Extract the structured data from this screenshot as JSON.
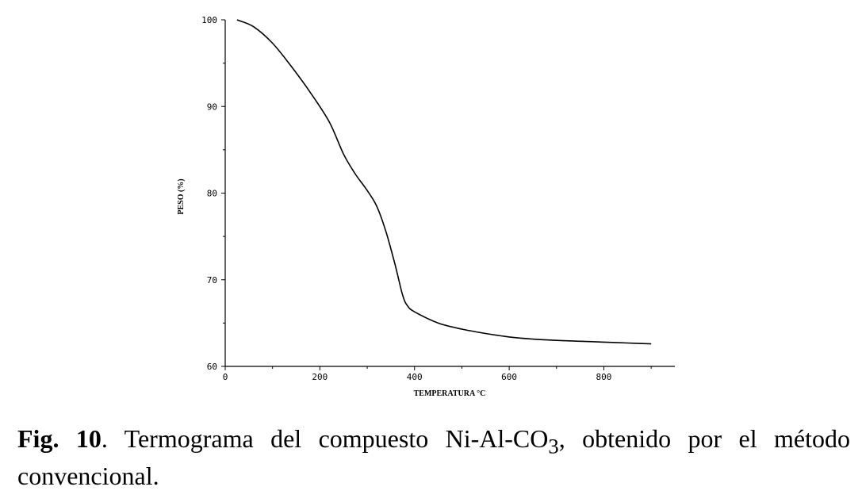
{
  "chart_data": {
    "type": "line",
    "title": "",
    "xlabel": "TEMPERATURA °C",
    "ylabel": "PESO (%)",
    "xlim": [
      0,
      950
    ],
    "ylim": [
      60,
      100
    ],
    "x_ticks": [
      "0",
      "200",
      "400",
      "600",
      "800"
    ],
    "y_ticks": [
      "60",
      "70",
      "80",
      "90",
      "100"
    ],
    "grid": false,
    "series": [
      {
        "points": [
          [
            25,
            100
          ],
          [
            60,
            99.2
          ],
          [
            100,
            97.3
          ],
          [
            140,
            94.6
          ],
          [
            180,
            91.6
          ],
          [
            220,
            88.2
          ],
          [
            250,
            84.5
          ],
          [
            275,
            82.2
          ],
          [
            300,
            80.3
          ],
          [
            320,
            78.5
          ],
          [
            340,
            75.5
          ],
          [
            360,
            71.5
          ],
          [
            375,
            68.2
          ],
          [
            385,
            67.0
          ],
          [
            400,
            66.3
          ],
          [
            450,
            65.0
          ],
          [
            500,
            64.3
          ],
          [
            550,
            63.8
          ],
          [
            600,
            63.4
          ],
          [
            650,
            63.15
          ],
          [
            700,
            63.0
          ],
          [
            750,
            62.9
          ],
          [
            800,
            62.8
          ],
          [
            850,
            62.7
          ],
          [
            900,
            62.6
          ]
        ]
      }
    ]
  },
  "caption": {
    "label": "Fig. 10",
    "text_before": ". Termograma del compuesto Ni-Al-CO",
    "subscript": "3",
    "text_after": ", obtenido por el método convencional."
  }
}
